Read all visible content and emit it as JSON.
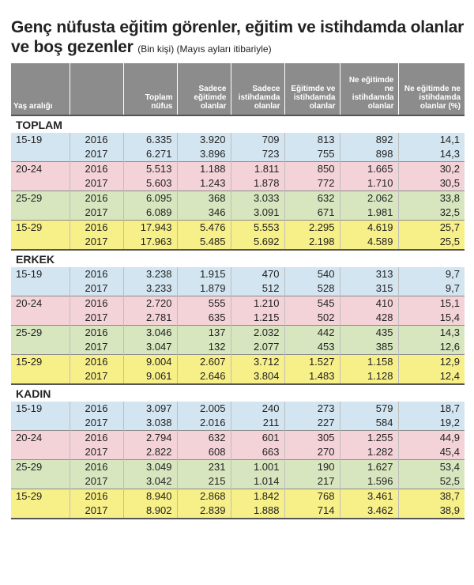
{
  "title": {
    "main": "Genç nüfusta eğitim görenler, eğitim ve istihdamda olanlar ve boş gezenler",
    "sub": "(Bin kişi) (Mayıs ayları itibariyle)"
  },
  "chart_data": {
    "type": "table",
    "title": "Genç nüfusta eğitim görenler, eğitim ve istihdamda olanlar ve boş gezenler",
    "subtitle": "(Bin kişi) (Mayıs ayları itibariyle)",
    "columns": [
      "Yaş aralığı",
      "",
      "Toplam nüfus",
      "Sadece eğitimde olanlar",
      "Sadece istihdamda olanlar",
      "Eğitimde ve istihdamda olanlar",
      "Ne eğitimde ne istihdamda olanlar",
      "Ne eğitimde ne istihdamda olanlar (%)"
    ],
    "sections": [
      {
        "name": "TOPLAM",
        "groups": [
          {
            "age": "15-19",
            "color": "#d3e5f0",
            "rows": [
              {
                "year": "2016",
                "values": [
                  "6.335",
                  "3.920",
                  "709",
                  "813",
                  "892",
                  "14,1"
                ]
              },
              {
                "year": "2017",
                "values": [
                  "6.271",
                  "3.896",
                  "723",
                  "755",
                  "898",
                  "14,3"
                ]
              }
            ]
          },
          {
            "age": "20-24",
            "color": "#f3d3d8",
            "rows": [
              {
                "year": "2016",
                "values": [
                  "5.513",
                  "1.188",
                  "1.811",
                  "850",
                  "1.665",
                  "30,2"
                ]
              },
              {
                "year": "2017",
                "values": [
                  "5.603",
                  "1.243",
                  "1.878",
                  "772",
                  "1.710",
                  "30,5"
                ]
              }
            ]
          },
          {
            "age": "25-29",
            "color": "#d8e6bf",
            "rows": [
              {
                "year": "2016",
                "values": [
                  "6.095",
                  "368",
                  "3.033",
                  "632",
                  "2.062",
                  "33,8"
                ]
              },
              {
                "year": "2017",
                "values": [
                  "6.089",
                  "346",
                  "3.091",
                  "671",
                  "1.981",
                  "32,5"
                ]
              }
            ]
          },
          {
            "age": "15-29",
            "color": "#f7f089",
            "rows": [
              {
                "year": "2016",
                "values": [
                  "17.943",
                  "5.476",
                  "5.553",
                  "2.295",
                  "4.619",
                  "25,7"
                ]
              },
              {
                "year": "2017",
                "values": [
                  "17.963",
                  "5.485",
                  "5.692",
                  "2.198",
                  "4.589",
                  "25,5"
                ]
              }
            ]
          }
        ]
      },
      {
        "name": "ERKEK",
        "groups": [
          {
            "age": "15-19",
            "color": "#d3e5f0",
            "rows": [
              {
                "year": "2016",
                "values": [
                  "3.238",
                  "1.915",
                  "470",
                  "540",
                  "313",
                  "9,7"
                ]
              },
              {
                "year": "2017",
                "values": [
                  "3.233",
                  "1.879",
                  "512",
                  "528",
                  "315",
                  "9,7"
                ]
              }
            ]
          },
          {
            "age": "20-24",
            "color": "#f3d3d8",
            "rows": [
              {
                "year": "2016",
                "values": [
                  "2.720",
                  "555",
                  "1.210",
                  "545",
                  "410",
                  "15,1"
                ]
              },
              {
                "year": "2017",
                "values": [
                  "2.781",
                  "635",
                  "1.215",
                  "502",
                  "428",
                  "15,4"
                ]
              }
            ]
          },
          {
            "age": "25-29",
            "color": "#d8e6bf",
            "rows": [
              {
                "year": "2016",
                "values": [
                  "3.046",
                  "137",
                  "2.032",
                  "442",
                  "435",
                  "14,3"
                ]
              },
              {
                "year": "2017",
                "values": [
                  "3.047",
                  "132",
                  "2.077",
                  "453",
                  "385",
                  "12,6"
                ]
              }
            ]
          },
          {
            "age": "15-29",
            "color": "#f7f089",
            "rows": [
              {
                "year": "2016",
                "values": [
                  "9.004",
                  "2.607",
                  "3.712",
                  "1.527",
                  "1.158",
                  "12,9"
                ]
              },
              {
                "year": "2017",
                "values": [
                  "9.061",
                  "2.646",
                  "3.804",
                  "1.483",
                  "1.128",
                  "12,4"
                ]
              }
            ]
          }
        ]
      },
      {
        "name": "KADIN",
        "groups": [
          {
            "age": "15-19",
            "color": "#d3e5f0",
            "rows": [
              {
                "year": "2016",
                "values": [
                  "3.097",
                  "2.005",
                  "240",
                  "273",
                  "579",
                  "18,7"
                ]
              },
              {
                "year": "2017",
                "values": [
                  "3.038",
                  "2.016",
                  "211",
                  "227",
                  "584",
                  "19,2"
                ]
              }
            ]
          },
          {
            "age": "20-24",
            "color": "#f3d3d8",
            "rows": [
              {
                "year": "2016",
                "values": [
                  "2.794",
                  "632",
                  "601",
                  "305",
                  "1.255",
                  "44,9"
                ]
              },
              {
                "year": "2017",
                "values": [
                  "2.822",
                  "608",
                  "663",
                  "270",
                  "1.282",
                  "45,4"
                ]
              }
            ]
          },
          {
            "age": "25-29",
            "color": "#d8e6bf",
            "rows": [
              {
                "year": "2016",
                "values": [
                  "3.049",
                  "231",
                  "1.001",
                  "190",
                  "1.627",
                  "53,4"
                ]
              },
              {
                "year": "2017",
                "values": [
                  "3.042",
                  "215",
                  "1.014",
                  "217",
                  "1.596",
                  "52,5"
                ]
              }
            ]
          },
          {
            "age": "15-29",
            "color": "#f7f089",
            "rows": [
              {
                "year": "2016",
                "values": [
                  "8.940",
                  "2.868",
                  "1.842",
                  "768",
                  "3.461",
                  "38,7"
                ]
              },
              {
                "year": "2017",
                "values": [
                  "8.902",
                  "2.839",
                  "1.888",
                  "714",
                  "3.462",
                  "38,9"
                ]
              }
            ]
          }
        ]
      }
    ]
  }
}
